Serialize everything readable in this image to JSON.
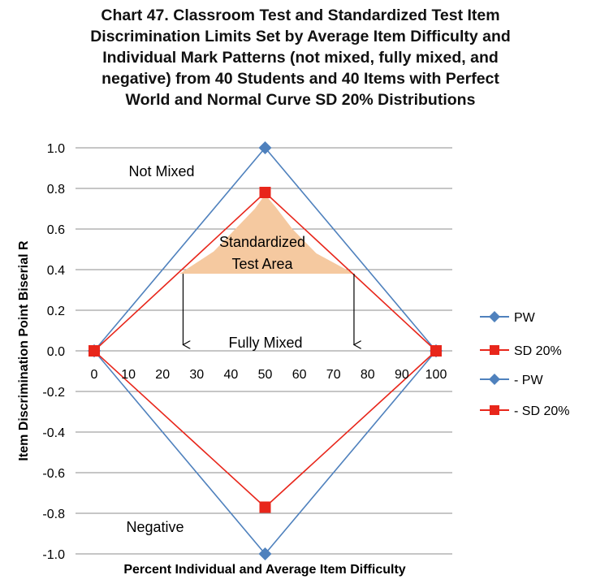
{
  "chart_data": {
    "type": "line",
    "title_lines": [
      "Chart 47. Classroom Test and Standardized Test Item",
      "Discrimination Limits Set by Average Item Difficulty and",
      "Individual Mark Patterns (not mixed, fully mixed, and",
      "negative) from 40 Students and 40 Items with Perfect",
      "World and Normal Curve SD 20%  Distributions"
    ],
    "xlabel": "Percent Individual and Average Item Difficulty",
    "ylabel": "Item Discrimination Point Biserial R",
    "xlim": [
      0,
      100
    ],
    "ylim": [
      -1.0,
      1.0
    ],
    "x_ticks": [
      "0",
      "10",
      "20",
      "30",
      "40",
      "50",
      "60",
      "70",
      "80",
      "90",
      "100"
    ],
    "y_ticks": [
      "1.0",
      "0.8",
      "0.6",
      "0.4",
      "0.2",
      "0.0",
      "-0.2",
      "-0.4",
      "-0.6",
      "-0.8",
      "-1.0"
    ],
    "grid": true,
    "legend_position": "right",
    "series": [
      {
        "name": "PW",
        "color": "#4f81bd",
        "marker": "diamond",
        "x": [
          0,
          50,
          100
        ],
        "y": [
          0,
          1.0,
          0
        ]
      },
      {
        "name": "SD 20%",
        "color": "#e8261b",
        "marker": "square",
        "x": [
          0,
          50,
          100
        ],
        "y": [
          0,
          0.78,
          0
        ]
      },
      {
        "name": "- PW",
        "color": "#4f81bd",
        "marker": "diamond",
        "x": [
          0,
          50,
          100
        ],
        "y": [
          0,
          -1.0,
          0
        ]
      },
      {
        "name": "- SD 20%",
        "color": "#e8261b",
        "marker": "square",
        "x": [
          0,
          50,
          100
        ],
        "y": [
          0,
          -0.77,
          0
        ]
      }
    ],
    "shaded_area": {
      "label_lines": [
        "Standardized",
        "Test Area"
      ],
      "color": "#f5c9a0",
      "x": [
        25,
        35,
        43,
        47,
        50,
        53,
        58,
        65,
        76
      ],
      "y": [
        0.38,
        0.49,
        0.63,
        0.7,
        0.77,
        0.71,
        0.6,
        0.48,
        0.38
      ]
    },
    "arrows": [
      {
        "x": 26,
        "y_from": 0.38,
        "y_to": 0.03
      },
      {
        "x": 76,
        "y_from": 0.38,
        "y_to": 0.03
      }
    ],
    "annotations": {
      "not_mixed": "Not Mixed",
      "fully_mixed": "Fully Mixed",
      "negative": "Negative"
    }
  }
}
